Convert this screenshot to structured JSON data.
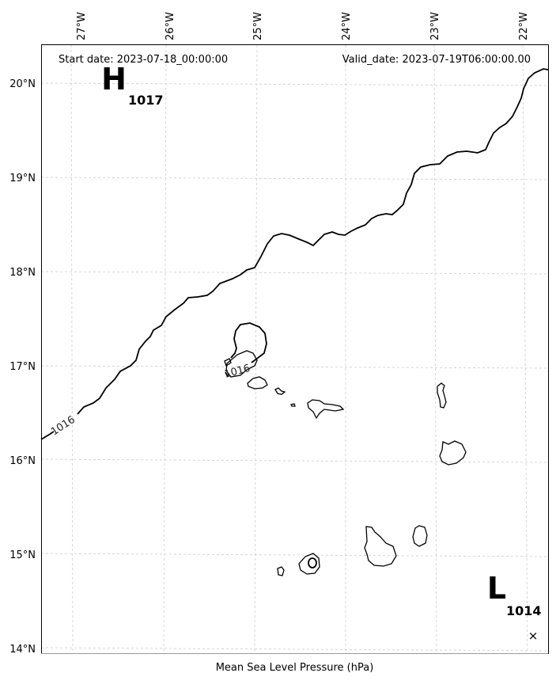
{
  "header": {
    "start_date": "Start date: 2023-07-18_00:00:00",
    "valid_date": "Valid_date: 2023-07-19T06:00:00.00"
  },
  "axes": {
    "lon_labels": [
      "27°W",
      "26°W",
      "25°W",
      "24°W",
      "23°W",
      "22°W"
    ],
    "lat_labels": [
      "20°N",
      "19°N",
      "18°N",
      "17°N",
      "16°N",
      "15°N",
      "14°N"
    ],
    "xlabel": "Mean Sea Level Pressure (hPa)"
  },
  "pressure_centers": {
    "high": {
      "symbol": "H",
      "value": "1017"
    },
    "low": {
      "symbol": "L",
      "value": "1014",
      "marker": "×"
    }
  },
  "contours": {
    "label_a": "1016",
    "label_b": "1016"
  },
  "colors": {
    "isobar": "#000000",
    "coastline": "#000000",
    "grid": "#cccccc",
    "frame": "#000000"
  }
}
